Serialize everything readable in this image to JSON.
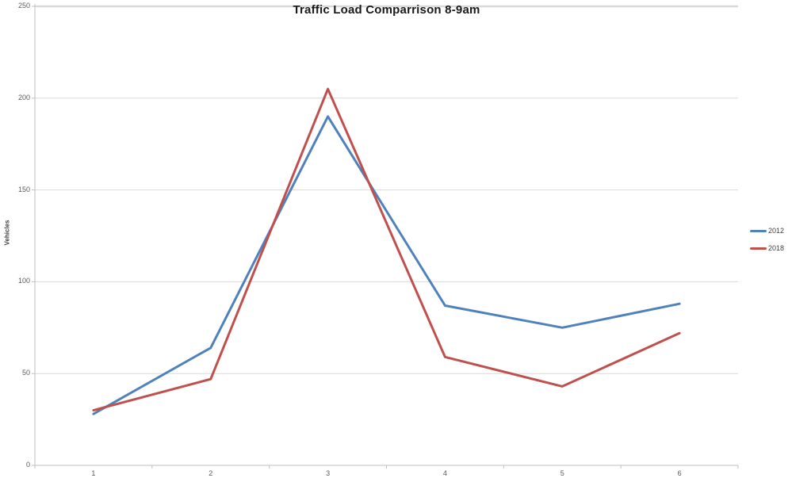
{
  "chart_data": {
    "type": "line",
    "title": "Traffic Load Comparrison 8-9am",
    "xlabel": "",
    "ylabel": "Vehicles",
    "categories": [
      "1",
      "2",
      "3",
      "4",
      "5",
      "6"
    ],
    "series": [
      {
        "name": "2012",
        "color": "#4F81BD",
        "values": [
          28,
          64,
          190,
          87,
          75,
          88
        ]
      },
      {
        "name": "2018",
        "color": "#C0504D",
        "values": [
          30,
          47,
          205,
          59,
          43,
          72
        ]
      }
    ],
    "ylim": [
      0,
      250
    ],
    "yticks": [
      0,
      50,
      100,
      150,
      200,
      250
    ],
    "grid": true,
    "gridline_color": "#D9D9D9",
    "axis_color": "#BFBFBF",
    "legend_position": "right",
    "line_width": 3
  }
}
